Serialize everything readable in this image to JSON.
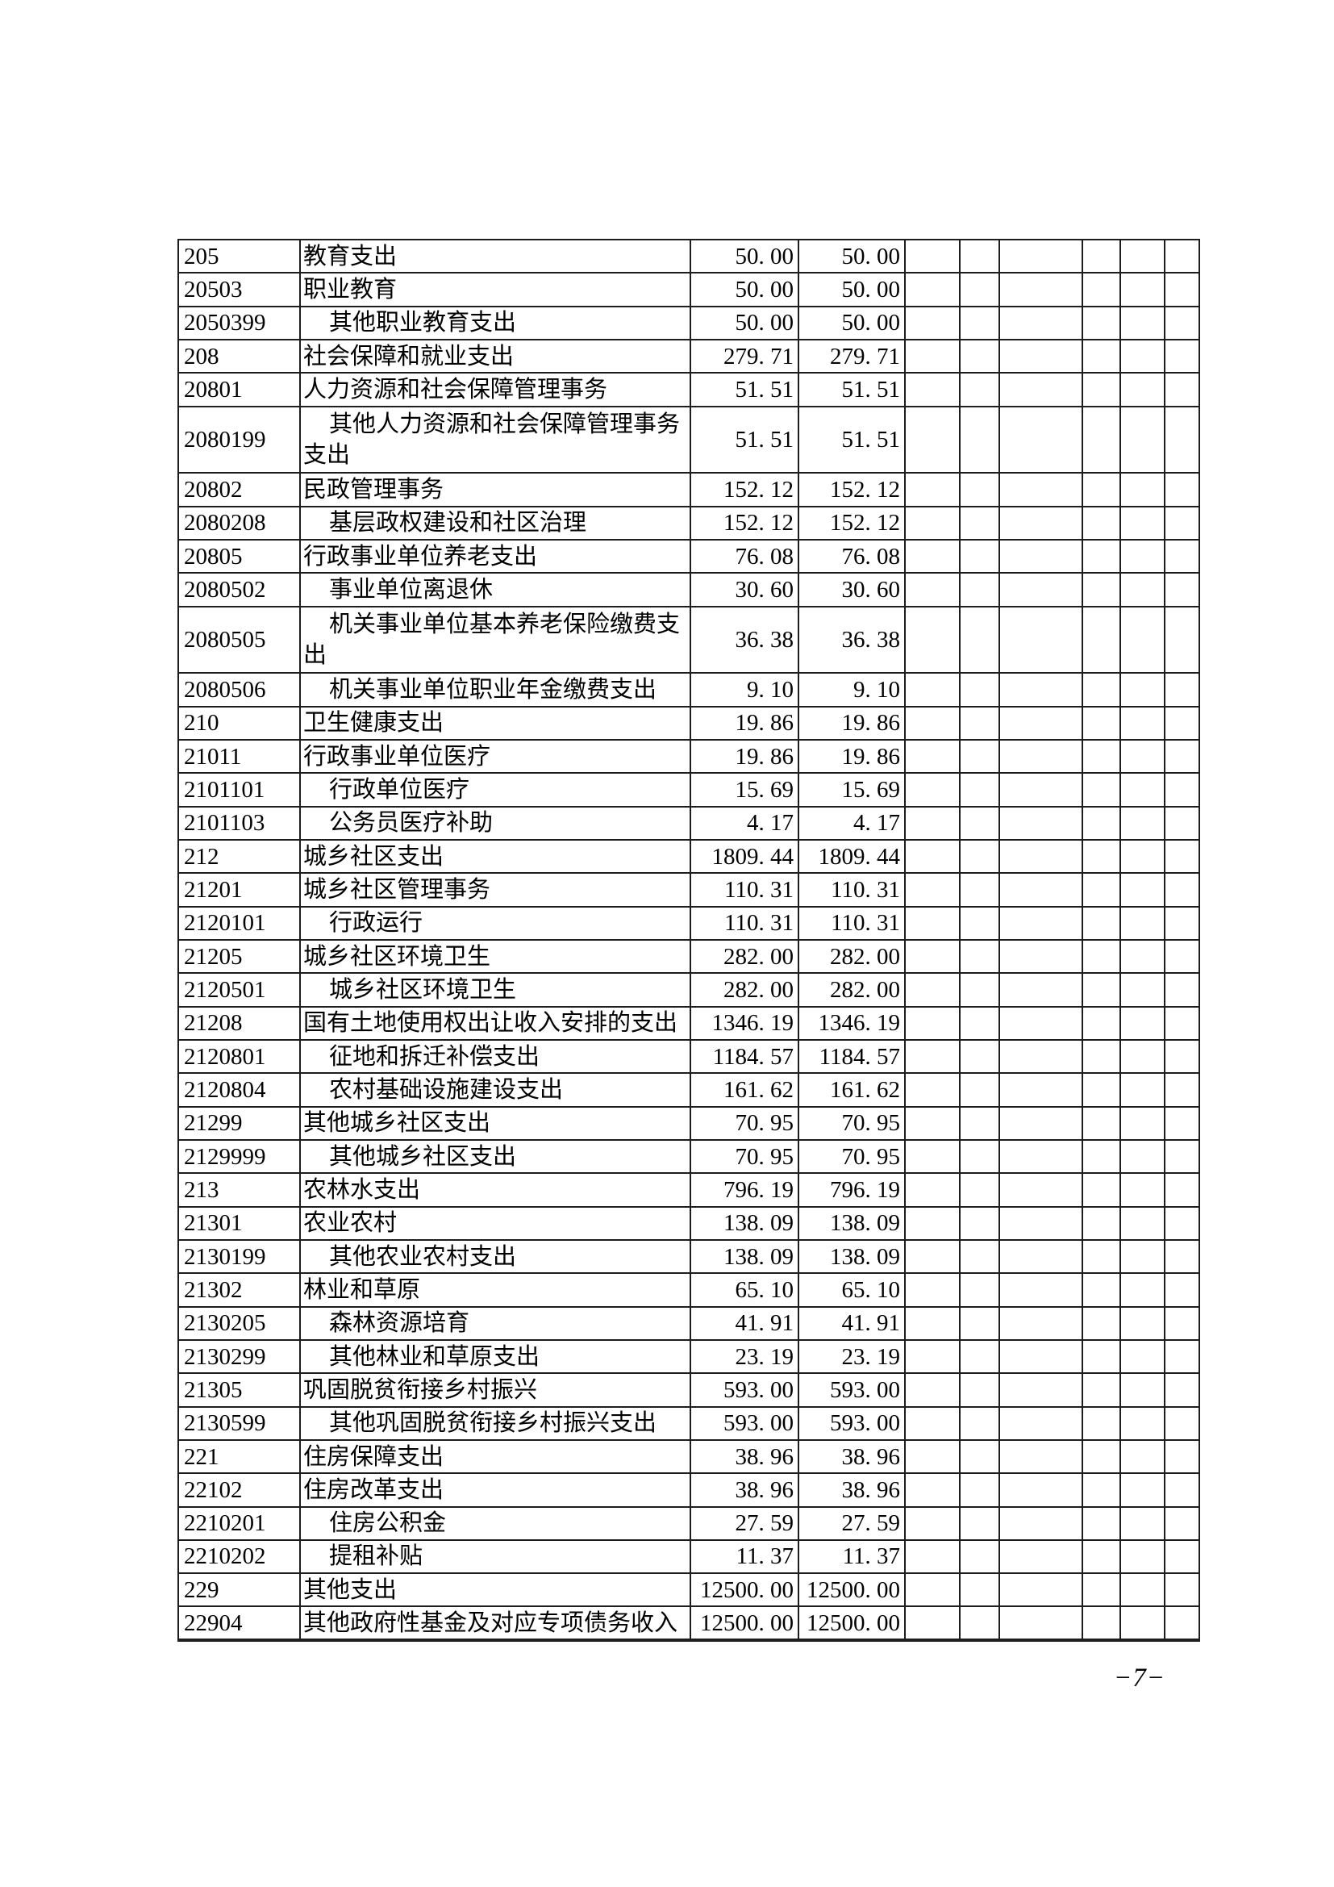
{
  "page": {
    "number": "−7−",
    "paper_color": "#ffffff",
    "ink_color": "#000000",
    "grid_line_color": "#1d1d1d"
  },
  "table": {
    "rows": [
      {
        "code": "205",
        "name": "教育支出",
        "amount1": "50. 00",
        "amount2": "50. 00"
      },
      {
        "code": "20503",
        "name": "职业教育",
        "amount1": "50. 00",
        "amount2": "50. 00"
      },
      {
        "code": "2050399",
        "name": "其他职业教育支出",
        "amount1": "50. 00",
        "amount2": "50. 00",
        "indent": true
      },
      {
        "code": "208",
        "name": "社会保障和就业支出",
        "amount1": "279. 71",
        "amount2": "279. 71"
      },
      {
        "code": "20801",
        "name": "人力资源和社会保障管理事务",
        "amount1": "51. 51",
        "amount2": "51. 51"
      },
      {
        "code": "2080199",
        "name": "其他人力资源和社会保障管理事务支出",
        "amount1": "51. 51",
        "amount2": "51. 51",
        "indent": true,
        "tall": true
      },
      {
        "code": "20802",
        "name": "民政管理事务",
        "amount1": "152. 12",
        "amount2": "152. 12"
      },
      {
        "code": "2080208",
        "name": "基层政权建设和社区治理",
        "amount1": "152. 12",
        "amount2": "152. 12",
        "indent": true
      },
      {
        "code": "20805",
        "name": "行政事业单位养老支出",
        "amount1": "76. 08",
        "amount2": "76. 08"
      },
      {
        "code": "2080502",
        "name": "事业单位离退休",
        "amount1": "30. 60",
        "amount2": "30. 60",
        "indent": true
      },
      {
        "code": "2080505",
        "name": "机关事业单位基本养老保险缴费支出",
        "amount1": "36. 38",
        "amount2": "36. 38",
        "indent": true,
        "tall": true
      },
      {
        "code": "2080506",
        "name": "机关事业单位职业年金缴费支出",
        "amount1": "9. 10",
        "amount2": "9. 10",
        "indent": true
      },
      {
        "code": "210",
        "name": "卫生健康支出",
        "amount1": "19. 86",
        "amount2": "19. 86"
      },
      {
        "code": "21011",
        "name": "行政事业单位医疗",
        "amount1": "19. 86",
        "amount2": "19. 86"
      },
      {
        "code": "2101101",
        "name": "行政单位医疗",
        "amount1": "15. 69",
        "amount2": "15. 69",
        "indent": true
      },
      {
        "code": "2101103",
        "name": "公务员医疗补助",
        "amount1": "4. 17",
        "amount2": "4. 17",
        "indent": true
      },
      {
        "code": "212",
        "name": "城乡社区支出",
        "amount1": "1809. 44",
        "amount2": "1809. 44"
      },
      {
        "code": "21201",
        "name": "城乡社区管理事务",
        "amount1": "110. 31",
        "amount2": "110. 31"
      },
      {
        "code": "2120101",
        "name": "行政运行",
        "amount1": "110. 31",
        "amount2": "110. 31",
        "indent": true
      },
      {
        "code": "21205",
        "name": "城乡社区环境卫生",
        "amount1": "282. 00",
        "amount2": "282. 00"
      },
      {
        "code": "2120501",
        "name": "城乡社区环境卫生",
        "amount1": "282. 00",
        "amount2": "282. 00",
        "indent": true
      },
      {
        "code": "21208",
        "name": "国有土地使用权出让收入安排的支出",
        "amount1": "1346. 19",
        "amount2": "1346. 19"
      },
      {
        "code": "2120801",
        "name": "征地和拆迁补偿支出",
        "amount1": "1184. 57",
        "amount2": "1184. 57",
        "indent": true
      },
      {
        "code": "2120804",
        "name": "农村基础设施建设支出",
        "amount1": "161. 62",
        "amount2": "161. 62",
        "indent": true
      },
      {
        "code": "21299",
        "name": "其他城乡社区支出",
        "amount1": "70. 95",
        "amount2": "70. 95"
      },
      {
        "code": "2129999",
        "name": "其他城乡社区支出",
        "amount1": "70. 95",
        "amount2": "70. 95",
        "indent": true
      },
      {
        "code": "213",
        "name": "农林水支出",
        "amount1": "796. 19",
        "amount2": "796. 19"
      },
      {
        "code": "21301",
        "name": "农业农村",
        "amount1": "138. 09",
        "amount2": "138. 09"
      },
      {
        "code": "2130199",
        "name": "其他农业农村支出",
        "amount1": "138. 09",
        "amount2": "138. 09",
        "indent": true
      },
      {
        "code": "21302",
        "name": "林业和草原",
        "amount1": "65. 10",
        "amount2": "65. 10"
      },
      {
        "code": "2130205",
        "name": "森林资源培育",
        "amount1": "41. 91",
        "amount2": "41. 91",
        "indent": true
      },
      {
        "code": "2130299",
        "name": "其他林业和草原支出",
        "amount1": "23. 19",
        "amount2": "23. 19",
        "indent": true
      },
      {
        "code": "21305",
        "name": "巩固脱贫衔接乡村振兴",
        "amount1": "593. 00",
        "amount2": "593. 00"
      },
      {
        "code": "2130599",
        "name": "其他巩固脱贫衔接乡村振兴支出",
        "amount1": "593. 00",
        "amount2": "593. 00",
        "indent": true
      },
      {
        "code": "221",
        "name": "住房保障支出",
        "amount1": "38. 96",
        "amount2": "38. 96"
      },
      {
        "code": "22102",
        "name": "住房改革支出",
        "amount1": "38. 96",
        "amount2": "38. 96"
      },
      {
        "code": "2210201",
        "name": "住房公积金",
        "amount1": "27. 59",
        "amount2": "27. 59",
        "indent": true
      },
      {
        "code": "2210202",
        "name": "提租补贴",
        "amount1": "11. 37",
        "amount2": "11. 37",
        "indent": true
      },
      {
        "code": "229",
        "name": "其他支出",
        "amount1": "12500. 00",
        "amount2": "12500. 00"
      },
      {
        "code": "22904",
        "name": "其他政府性基金及对应专项债务收入",
        "amount1": "12500. 00",
        "amount2": "12500. 00"
      }
    ]
  }
}
